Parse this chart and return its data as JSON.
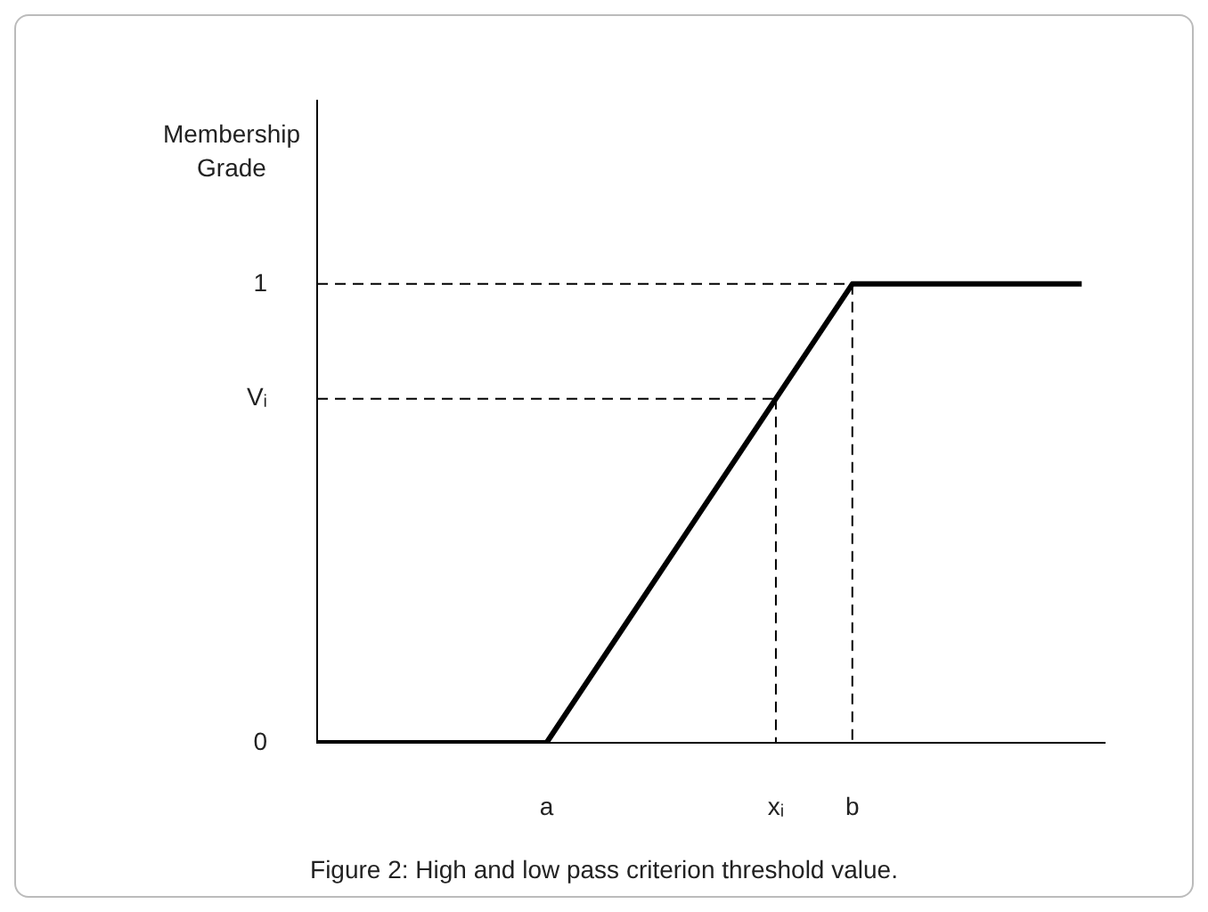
{
  "chart_data": {
    "type": "line",
    "title": "Figure 2: High and low pass criterion threshold value.",
    "ylabel": "Membership Grade",
    "categories": [
      null,
      null,
      null,
      "a",
      null,
      null,
      "xᵢ",
      "b",
      null,
      null,
      null
    ],
    "series": [
      {
        "color": "#000000",
        "values": [
          0,
          0,
          0,
          0,
          0.25,
          0.5,
          0.75,
          1,
          1,
          1,
          1
        ]
      },
      {
        "color": "#000000",
        "line_style": "dashed",
        "values": [
          1,
          1,
          1,
          1,
          1,
          1,
          1,
          1,
          null,
          null,
          null
        ]
      },
      {
        "color": "#000000",
        "line_style": "dashed",
        "x": [
          "b",
          "b"
        ],
        "values": [
          1,
          0
        ]
      },
      {
        "color": "#000000",
        "line_style": "dashed",
        "values": [
          0.75,
          0.75,
          0.75,
          0.75,
          0.75,
          0.75,
          0.75,
          null,
          null,
          null,
          null
        ]
      },
      {
        "color": "#000000",
        "line_style": "dashed",
        "x": [
          "xᵢ",
          "xᵢ"
        ],
        "values": [
          0.75,
          0
        ]
      }
    ],
    "ylim": [
      0,
      1.4
    ],
    "yticks": [
      0,
      {
        "value": 0.75,
        "label": "Vᵢ"
      },
      1
    ],
    "grid": false,
    "legend": false,
    "marker": "none",
    "line_style": "solid"
  }
}
